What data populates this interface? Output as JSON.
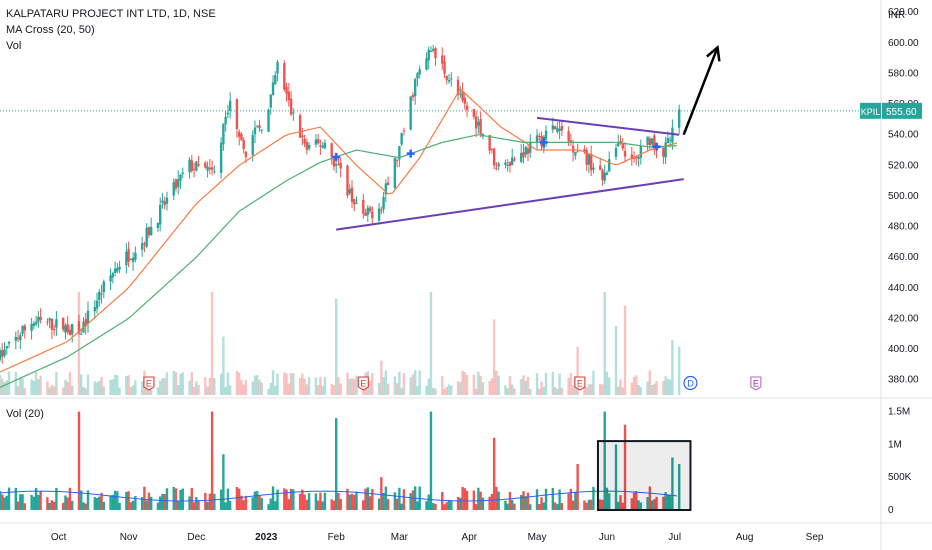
{
  "header": {
    "title": "KALPATARU PROJECT INT LTD, 1D, NSE",
    "indicator": "MA Cross (20, 50)",
    "volume_label": "Vol"
  },
  "volume_pane": {
    "label": "Vol (20)"
  },
  "price_axis": {
    "currency": "INR",
    "last_price_symbol": "KPIL",
    "last_price": "555.60"
  },
  "colors": {
    "up": "#26a69a",
    "down": "#ef5350",
    "ma_fast": "#f57c45",
    "ma_slow": "#4caf72",
    "trendline": "#6a3fb5",
    "volume_ma": "#2962ff",
    "cross_marker": "#2962ff",
    "earnings": "#e53935",
    "dividend": "#2962ff",
    "annotation": "#000000"
  },
  "chart_data": [
    {
      "type": "candlestick",
      "name": "price",
      "title": "KALPATARU PROJECT INT LTD, 1D, NSE",
      "ylim": [
        370,
        628
      ],
      "y_ticks": [
        380,
        400,
        420,
        440,
        460,
        480,
        500,
        520,
        540,
        560,
        580,
        600,
        620
      ],
      "y_tick_labels": [
        "380.00",
        "400.00",
        "420.00",
        "440.00",
        "460.00",
        "480.00",
        "500.00",
        "520.00",
        "540.00",
        "560.00",
        "580.00",
        "600.00",
        "620.00"
      ],
      "x_tick_labels": [
        "Oct",
        "Nov",
        "Dec",
        "2023",
        "Feb",
        "Mar",
        "Apr",
        "May",
        "Jun",
        "Jul",
        "Aug",
        "Sep"
      ],
      "x_tick_dates": [
        "2022-10-01",
        "2022-11-01",
        "2022-12-01",
        "2023-01-01",
        "2023-02-01",
        "2023-03-01",
        "2023-04-01",
        "2023-05-01",
        "2023-06-01",
        "2023-07-01",
        "2023-08-01",
        "2023-09-01"
      ],
      "x_range": [
        "2022-09-05",
        "2023-09-30"
      ],
      "price_points": [
        [
          "2022-09-05",
          395
        ],
        [
          "2022-09-19",
          418
        ],
        [
          "2022-10-03",
          415
        ],
        [
          "2022-10-10",
          410
        ],
        [
          "2022-10-17",
          430
        ],
        [
          "2022-10-27",
          455
        ],
        [
          "2022-11-07",
          470
        ],
        [
          "2022-11-17",
          495
        ],
        [
          "2022-11-28",
          520
        ],
        [
          "2022-12-08",
          515
        ],
        [
          "2022-12-16",
          560
        ],
        [
          "2022-12-23",
          530
        ],
        [
          "2023-01-02",
          555
        ],
        [
          "2023-01-06",
          585
        ],
        [
          "2023-01-12",
          555
        ],
        [
          "2023-01-19",
          530
        ],
        [
          "2023-01-27",
          535
        ],
        [
          "2023-02-06",
          505
        ],
        [
          "2023-02-13",
          485
        ],
        [
          "2023-02-21",
          495
        ],
        [
          "2023-03-01",
          530
        ],
        [
          "2023-03-08",
          575
        ],
        [
          "2023-03-15",
          595
        ],
        [
          "2023-03-22",
          580
        ],
        [
          "2023-03-29",
          560
        ],
        [
          "2023-04-06",
          545
        ],
        [
          "2023-04-13",
          520
        ],
        [
          "2023-04-21",
          525
        ],
        [
          "2023-05-01",
          535
        ],
        [
          "2023-05-09",
          545
        ],
        [
          "2023-05-19",
          530
        ],
        [
          "2023-05-26",
          520
        ],
        [
          "2023-05-30",
          510
        ],
        [
          "2023-06-05",
          535
        ],
        [
          "2023-06-12",
          520
        ],
        [
          "2023-06-20",
          538
        ],
        [
          "2023-06-26",
          528
        ],
        [
          "2023-06-30",
          540
        ],
        [
          "2023-07-03",
          555.6
        ]
      ],
      "moving_averages": [
        {
          "name": "MA 20",
          "color": "#f57c45",
          "points": [
            [
              "2022-09-05",
              385
            ],
            [
              "2022-10-05",
              405
            ],
            [
              "2022-11-01",
              440
            ],
            [
              "2022-12-01",
              495
            ],
            [
              "2022-12-20",
              520
            ],
            [
              "2023-01-10",
              540
            ],
            [
              "2023-01-25",
              545
            ],
            [
              "2023-02-10",
              520
            ],
            [
              "2023-02-25",
              500
            ],
            [
              "2023-03-10",
              525
            ],
            [
              "2023-03-28",
              570
            ],
            [
              "2023-04-15",
              545
            ],
            [
              "2023-05-01",
              530
            ],
            [
              "2023-05-20",
              530
            ],
            [
              "2023-06-05",
              520
            ],
            [
              "2023-06-20",
              530
            ],
            [
              "2023-07-03",
              535
            ]
          ]
        },
        {
          "name": "MA 50",
          "color": "#4caf72",
          "points": [
            [
              "2022-09-05",
              375
            ],
            [
              "2022-10-05",
              395
            ],
            [
              "2022-11-01",
              420
            ],
            [
              "2022-12-01",
              460
            ],
            [
              "2022-12-20",
              490
            ],
            [
              "2023-01-10",
              510
            ],
            [
              "2023-01-25",
              522
            ],
            [
              "2023-02-10",
              530
            ],
            [
              "2023-03-01",
              525
            ],
            [
              "2023-03-20",
              535
            ],
            [
              "2023-04-05",
              540
            ],
            [
              "2023-04-25",
              535
            ],
            [
              "2023-05-15",
              535
            ],
            [
              "2023-06-05",
              535
            ],
            [
              "2023-06-20",
              532
            ],
            [
              "2023-07-03",
              533
            ]
          ]
        }
      ],
      "ma_cross_markers": [
        "2023-02-01",
        "2023-03-06",
        "2023-05-04",
        "2023-06-23"
      ],
      "trendlines": [
        {
          "start": [
            "2023-02-01",
            478
          ],
          "end": [
            "2023-07-05",
            511
          ]
        },
        {
          "start": [
            "2023-05-01",
            551
          ],
          "end": [
            "2023-07-03",
            540
          ]
        }
      ],
      "arrow": {
        "start": [
          "2023-07-05",
          540
        ],
        "end": [
          "2023-07-20",
          597
        ]
      },
      "events": [
        {
          "label": "E",
          "date": "2022-11-10"
        },
        {
          "label": "E",
          "date": "2023-02-13"
        },
        {
          "label": "E",
          "date": "2023-05-20"
        },
        {
          "label": "D",
          "date": "2023-07-08"
        },
        {
          "label": "E",
          "date": "2023-08-06"
        }
      ]
    },
    {
      "type": "bar",
      "name": "volume",
      "title": "Vol (20)",
      "ylim": [
        0,
        1600000
      ],
      "y_ticks": [
        0,
        500000,
        1000000,
        1500000
      ],
      "y_tick_labels": [
        "0",
        "500K",
        "1M",
        "1.5M"
      ],
      "spikes": [
        [
          "2022-10-10",
          1500000
        ],
        [
          "2022-12-08",
          1500000
        ],
        [
          "2022-12-13",
          850000
        ],
        [
          "2023-02-01",
          1400000
        ],
        [
          "2023-02-21",
          500000
        ],
        [
          "2023-03-15",
          1500000
        ],
        [
          "2023-04-12",
          1100000
        ],
        [
          "2023-05-19",
          700000
        ],
        [
          "2023-05-31",
          1500000
        ],
        [
          "2023-06-05",
          1000000
        ],
        [
          "2023-06-09",
          1300000
        ],
        [
          "2023-06-30",
          800000
        ],
        [
          "2023-07-03",
          700000
        ]
      ],
      "typical_volume": 250000,
      "volume_ma_level": 250000,
      "highlight_box": {
        "start": "2023-05-28",
        "end": "2023-07-08",
        "ylim": [
          0,
          1050000
        ]
      }
    }
  ]
}
